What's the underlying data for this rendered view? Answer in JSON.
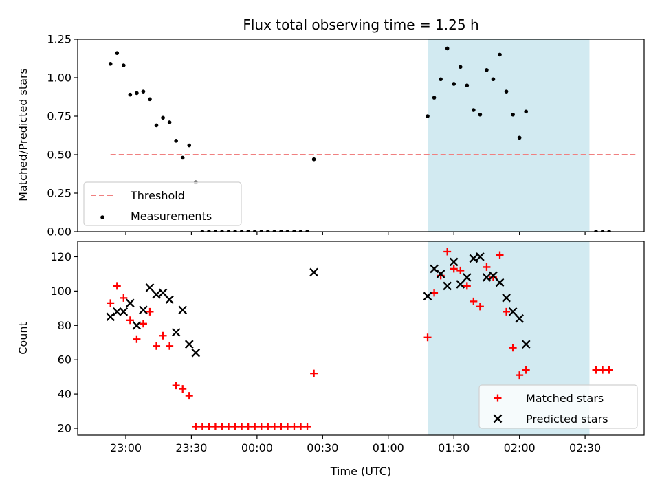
{
  "chart_data": [
    {
      "type": "scatter",
      "title": "Flux total observing time = 1.25 h",
      "ylabel": "Matched/Predicted stars",
      "xlabel": "",
      "xlim": [
        "22:38",
        "02:57"
      ],
      "ylim": [
        0,
        1.25
      ],
      "yticks": [
        "0.00",
        "0.25",
        "0.50",
        "0.75",
        "1.00",
        "1.25"
      ],
      "shaded_region": {
        "from": "01:18",
        "to": "02:32",
        "color": "#add8e6"
      },
      "legend_position": "lower-left",
      "series": [
        {
          "name": "Threshold",
          "style": "dashed-line",
          "color": "#f08080",
          "points": [
            [
              "22:53",
              0.5
            ],
            [
              "02:53",
              0.5
            ]
          ]
        },
        {
          "name": "Measurements",
          "style": "dot",
          "color": "#000000",
          "points": [
            [
              "22:53",
              1.09
            ],
            [
              "22:56",
              1.16
            ],
            [
              "22:59",
              1.08
            ],
            [
              "23:02",
              0.89
            ],
            [
              "23:05",
              0.9
            ],
            [
              "23:08",
              0.91
            ],
            [
              "23:11",
              0.86
            ],
            [
              "23:14",
              0.69
            ],
            [
              "23:17",
              0.74
            ],
            [
              "23:20",
              0.71
            ],
            [
              "23:23",
              0.59
            ],
            [
              "23:26",
              0.48
            ],
            [
              "23:29",
              0.56
            ],
            [
              "23:32",
              0.32
            ],
            [
              "23:35",
              0.0
            ],
            [
              "23:38",
              0.0
            ],
            [
              "23:41",
              0.0
            ],
            [
              "23:44",
              0.0
            ],
            [
              "23:47",
              0.0
            ],
            [
              "23:50",
              0.0
            ],
            [
              "23:53",
              0.0
            ],
            [
              "23:56",
              0.0
            ],
            [
              "23:59",
              0.0
            ],
            [
              "00:02",
              0.0
            ],
            [
              "00:05",
              0.0
            ],
            [
              "00:08",
              0.0
            ],
            [
              "00:11",
              0.0
            ],
            [
              "00:14",
              0.0
            ],
            [
              "00:17",
              0.0
            ],
            [
              "00:20",
              0.0
            ],
            [
              "00:23",
              0.0
            ],
            [
              "00:26",
              0.47
            ],
            [
              "01:18",
              0.75
            ],
            [
              "01:21",
              0.87
            ],
            [
              "01:24",
              0.99
            ],
            [
              "01:27",
              1.19
            ],
            [
              "01:30",
              0.96
            ],
            [
              "01:33",
              1.07
            ],
            [
              "01:36",
              0.95
            ],
            [
              "01:39",
              0.79
            ],
            [
              "01:42",
              0.76
            ],
            [
              "01:45",
              1.05
            ],
            [
              "01:48",
              0.99
            ],
            [
              "01:51",
              1.15
            ],
            [
              "01:54",
              0.91
            ],
            [
              "01:57",
              0.76
            ],
            [
              "02:00",
              0.61
            ],
            [
              "02:03",
              0.78
            ],
            [
              "02:35",
              0.0
            ],
            [
              "02:38",
              0.0
            ],
            [
              "02:41",
              0.0
            ]
          ]
        }
      ]
    },
    {
      "type": "scatter",
      "title": "",
      "ylabel": "Count",
      "xlabel": "Time (UTC)",
      "xlim": [
        "22:38",
        "02:57"
      ],
      "ylim": [
        16,
        129
      ],
      "yticks": [
        "20",
        "40",
        "60",
        "80",
        "100",
        "120"
      ],
      "xticks": [
        "23:00",
        "23:30",
        "00:00",
        "00:30",
        "01:00",
        "01:30",
        "02:00",
        "02:30"
      ],
      "shaded_region": {
        "from": "01:18",
        "to": "02:32",
        "color": "#add8e6"
      },
      "legend_position": "lower-right",
      "series": [
        {
          "name": "Matched stars",
          "style": "plus",
          "color": "#ff0000",
          "points": [
            [
              "22:53",
              93
            ],
            [
              "22:56",
              103
            ],
            [
              "22:59",
              96
            ],
            [
              "23:02",
              83
            ],
            [
              "23:05",
              72
            ],
            [
              "23:08",
              81
            ],
            [
              "23:11",
              88
            ],
            [
              "23:14",
              68
            ],
            [
              "23:17",
              74
            ],
            [
              "23:20",
              68
            ],
            [
              "23:23",
              45
            ],
            [
              "23:26",
              43
            ],
            [
              "23:29",
              39
            ],
            [
              "23:32",
              21
            ],
            [
              "23:35",
              21
            ],
            [
              "23:38",
              21
            ],
            [
              "23:41",
              21
            ],
            [
              "23:44",
              21
            ],
            [
              "23:47",
              21
            ],
            [
              "23:50",
              21
            ],
            [
              "23:53",
              21
            ],
            [
              "23:56",
              21
            ],
            [
              "23:59",
              21
            ],
            [
              "00:02",
              21
            ],
            [
              "00:05",
              21
            ],
            [
              "00:08",
              21
            ],
            [
              "00:11",
              21
            ],
            [
              "00:14",
              21
            ],
            [
              "00:17",
              21
            ],
            [
              "00:20",
              21
            ],
            [
              "00:23",
              21
            ],
            [
              "00:26",
              52
            ],
            [
              "01:18",
              73
            ],
            [
              "01:21",
              99
            ],
            [
              "01:24",
              109
            ],
            [
              "01:27",
              123
            ],
            [
              "01:30",
              113
            ],
            [
              "01:33",
              112
            ],
            [
              "01:36",
              103
            ],
            [
              "01:39",
              94
            ],
            [
              "01:42",
              91
            ],
            [
              "01:45",
              114
            ],
            [
              "01:48",
              108
            ],
            [
              "01:51",
              121
            ],
            [
              "01:54",
              88
            ],
            [
              "01:57",
              67
            ],
            [
              "02:00",
              51
            ],
            [
              "02:03",
              54
            ],
            [
              "02:35",
              54
            ],
            [
              "02:38",
              54
            ],
            [
              "02:41",
              54
            ]
          ]
        },
        {
          "name": "Predicted stars",
          "style": "x",
          "color": "#000000",
          "points": [
            [
              "22:53",
              85
            ],
            [
              "22:56",
              88
            ],
            [
              "22:59",
              88
            ],
            [
              "23:02",
              93
            ],
            [
              "23:05",
              80
            ],
            [
              "23:08",
              89
            ],
            [
              "23:11",
              102
            ],
            [
              "23:14",
              98
            ],
            [
              "23:17",
              99
            ],
            [
              "23:20",
              95
            ],
            [
              "23:23",
              76
            ],
            [
              "23:26",
              89
            ],
            [
              "23:29",
              69
            ],
            [
              "23:32",
              64
            ],
            [
              "00:26",
              111
            ],
            [
              "01:18",
              97
            ],
            [
              "01:21",
              113
            ],
            [
              "01:24",
              110
            ],
            [
              "01:27",
              103
            ],
            [
              "01:30",
              117
            ],
            [
              "01:33",
              104
            ],
            [
              "01:36",
              108
            ],
            [
              "01:39",
              119
            ],
            [
              "01:42",
              120
            ],
            [
              "01:45",
              108
            ],
            [
              "01:48",
              109
            ],
            [
              "01:51",
              105
            ],
            [
              "01:54",
              96
            ],
            [
              "01:57",
              88
            ],
            [
              "02:00",
              84
            ],
            [
              "02:03",
              69
            ]
          ]
        }
      ]
    }
  ]
}
